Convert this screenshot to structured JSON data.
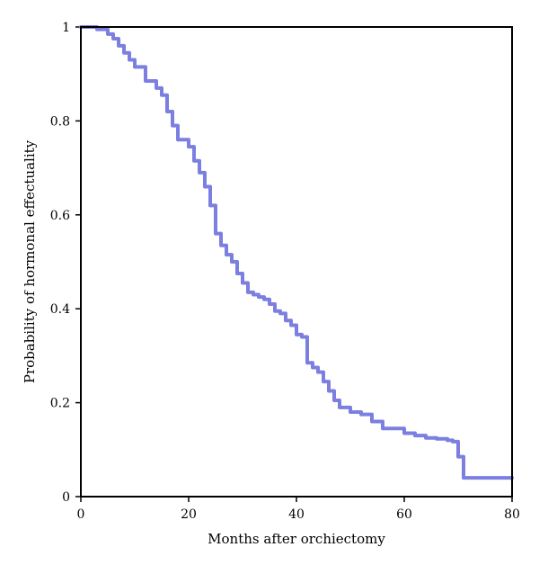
{
  "chart_data": {
    "type": "line",
    "title": "",
    "xlabel": "Months after orchiectomy",
    "ylabel": "Probability of hormonal effectuality",
    "xlim": [
      0,
      80
    ],
    "ylim": [
      0,
      1
    ],
    "xticks": [
      0,
      20,
      40,
      60,
      80
    ],
    "yticks": [
      0,
      0.2,
      0.4,
      0.6,
      0.8,
      1
    ],
    "xtick_labels": [
      "0",
      "20",
      "40",
      "60",
      "80"
    ],
    "ytick_labels": [
      "0",
      "0.2",
      "0.4",
      "0.6",
      "0.8",
      "1"
    ],
    "grid": false,
    "legend": "none",
    "line_color": "#7b7fe0",
    "series": [
      {
        "step": true,
        "x": [
          0,
          3,
          5,
          6,
          7,
          8,
          9,
          10,
          12,
          14,
          15,
          16,
          17,
          18,
          20,
          21,
          22,
          23,
          24,
          25,
          26,
          27,
          28,
          29,
          30,
          31,
          32,
          33,
          34,
          35,
          36,
          37,
          38,
          39,
          40,
          41,
          42,
          43,
          44,
          45,
          46,
          47,
          48,
          50,
          52,
          54,
          56,
          60,
          62,
          64,
          66,
          68,
          69,
          70,
          71,
          80
        ],
        "y": [
          1,
          0.995,
          0.985,
          0.975,
          0.96,
          0.945,
          0.93,
          0.915,
          0.885,
          0.87,
          0.855,
          0.82,
          0.79,
          0.76,
          0.745,
          0.715,
          0.69,
          0.66,
          0.62,
          0.56,
          0.535,
          0.515,
          0.5,
          0.475,
          0.455,
          0.435,
          0.43,
          0.425,
          0.42,
          0.41,
          0.395,
          0.39,
          0.375,
          0.365,
          0.345,
          0.34,
          0.285,
          0.275,
          0.265,
          0.245,
          0.225,
          0.205,
          0.19,
          0.18,
          0.175,
          0.16,
          0.145,
          0.135,
          0.13,
          0.125,
          0.123,
          0.12,
          0.117,
          0.085,
          0.04,
          0.04
        ]
      }
    ]
  }
}
